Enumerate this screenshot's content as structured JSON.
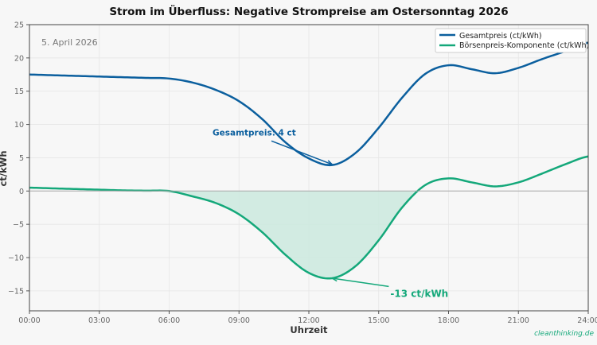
{
  "chart_data": {
    "type": "line",
    "title": "Strom im Überfluss: Negative Strompreise am Ostersonntag 2026",
    "subtitle": "5. April 2026",
    "xlabel": "Uhrzeit",
    "ylabel": "ct/kWh",
    "xlim": [
      0,
      24
    ],
    "ylim": [
      -18,
      25
    ],
    "x_ticks": [
      "00:00",
      "03:00",
      "06:00",
      "09:00",
      "12:00",
      "15:00",
      "18:00",
      "21:00",
      "24:00"
    ],
    "y_ticks": [
      -15,
      -10,
      -5,
      0,
      5,
      10,
      15,
      20,
      25
    ],
    "y_tick_labels": [
      "−15",
      "−10",
      "−5",
      "0",
      "5",
      "10",
      "15",
      "20",
      "25"
    ],
    "grid": true,
    "legend": "top-right",
    "x": [
      0,
      1,
      2,
      3,
      4,
      5,
      6,
      7,
      8,
      9,
      10,
      11,
      12,
      13,
      14,
      15,
      16,
      17,
      18,
      19,
      20,
      21,
      22,
      23,
      24
    ],
    "series": [
      {
        "name": "Gesamtpreis (ct/kWh)",
        "color": "#0b5f9e",
        "values": [
          17.5,
          17.4,
          17.3,
          17.2,
          17.1,
          17.0,
          16.9,
          16.3,
          15.2,
          13.5,
          10.8,
          7.3,
          4.9,
          3.9,
          5.7,
          9.5,
          14.0,
          17.6,
          18.9,
          18.3,
          17.7,
          18.5,
          19.8,
          21.0,
          22.3
        ]
      },
      {
        "name": "Börsenpreis-Komponente (ct/kWh)",
        "color": "#14a87a",
        "values": [
          0.5,
          0.4,
          0.3,
          0.2,
          0.1,
          0.05,
          0.0,
          -0.8,
          -1.8,
          -3.5,
          -6.2,
          -9.6,
          -12.3,
          -13.1,
          -11.3,
          -7.4,
          -2.5,
          0.9,
          1.9,
          1.3,
          0.7,
          1.3,
          2.6,
          4.0,
          5.2
        ]
      }
    ],
    "fill_below_zero_color": "#cde9df",
    "annotations": [
      {
        "text": "Gesamtpreis: 4 ct",
        "x": 13,
        "y": 4,
        "text_x": 8,
        "text_y": 8,
        "color": "#0b5f9e"
      },
      {
        "text": "-13 ct/kWh",
        "x": 13,
        "y": -13.1,
        "text_x": 15.5,
        "text_y": -15.3,
        "color": "#14a87a"
      }
    ],
    "watermark": "cleanthinking.de"
  }
}
